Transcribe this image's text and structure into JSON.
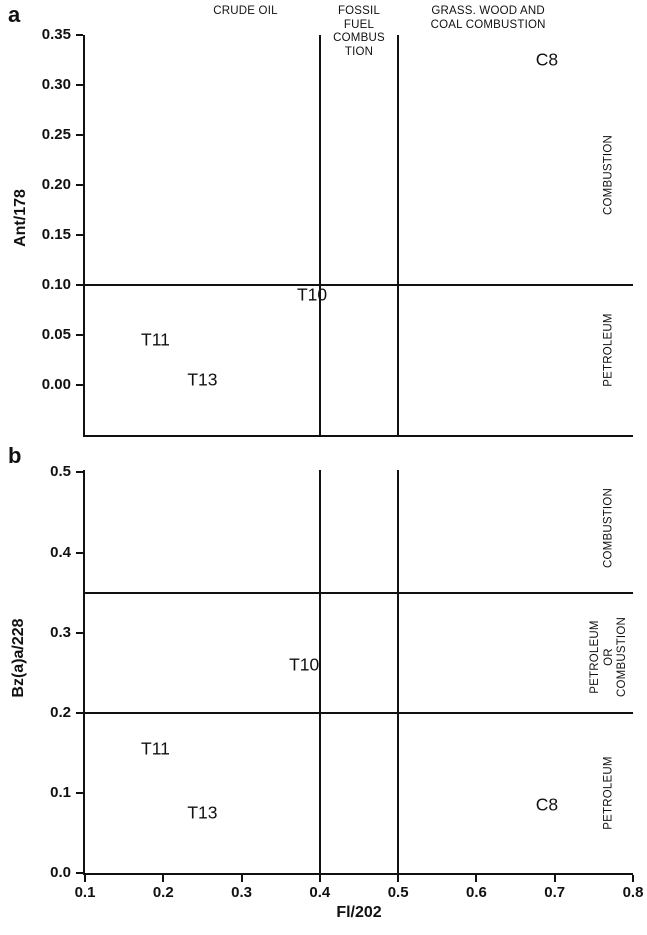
{
  "figure": {
    "xlabel": "Fl/202",
    "background": "#ffffff",
    "line_color": "#111111"
  },
  "chart_data": [
    {
      "type": "scatter",
      "panel_label": "a",
      "ylabel": "Ant/178",
      "xlabel": "Fl/202",
      "xlim": [
        0.1,
        0.8
      ],
      "ylim": [
        -0.05,
        0.35
      ],
      "grid": false,
      "legend": false,
      "yticks": [
        {
          "value": 0.35,
          "label": "0.35"
        },
        {
          "value": 0.3,
          "label": "0.30"
        },
        {
          "value": 0.25,
          "label": "0.25"
        },
        {
          "value": 0.2,
          "label": "0.20"
        },
        {
          "value": 0.15,
          "label": "0.15"
        },
        {
          "value": 0.1,
          "label": "0.10"
        },
        {
          "value": 0.05,
          "label": "0.05"
        },
        {
          "value": 0.0,
          "label": "0.00"
        }
      ],
      "xticks": [],
      "boundary_lines": {
        "horizontal": [
          0.1
        ],
        "vertical": [
          0.4,
          0.5
        ]
      },
      "points": [
        {
          "label": "C8",
          "x": 0.69,
          "y": 0.325
        },
        {
          "label": "T10",
          "x": 0.39,
          "y": 0.09
        },
        {
          "label": "T11",
          "x": 0.19,
          "y": 0.045
        },
        {
          "label": "T13",
          "x": 0.25,
          "y": 0.005
        }
      ],
      "top_annotations": [
        {
          "text": "CRUDE OIL",
          "x": 0.305
        },
        {
          "text": "FOSSIL\nFUEL\nCOMBUS\nTION",
          "x": 0.45
        },
        {
          "text": "GRASS. WOOD AND\nCOAL COMBUSTION",
          "x": 0.615
        }
      ],
      "right_annotations": [
        {
          "text": "COMBUSTION",
          "y": 0.21
        },
        {
          "text": "PETROLEUM",
          "y": 0.035
        }
      ]
    },
    {
      "type": "scatter",
      "panel_label": "b",
      "ylabel": "Bz(a)a/228",
      "xlabel": "Fl/202",
      "xlim": [
        0.1,
        0.8
      ],
      "ylim": [
        0.0,
        0.503
      ],
      "grid": false,
      "legend": false,
      "yticks": [
        {
          "value": 0.5,
          "label": "0.5"
        },
        {
          "value": 0.4,
          "label": "0.4"
        },
        {
          "value": 0.3,
          "label": "0.3"
        },
        {
          "value": 0.2,
          "label": "0.2"
        },
        {
          "value": 0.1,
          "label": "0.1"
        },
        {
          "value": 0.0,
          "label": "0.0"
        }
      ],
      "xticks": [
        {
          "value": 0.1,
          "label": "0.1"
        },
        {
          "value": 0.2,
          "label": "0.2"
        },
        {
          "value": 0.3,
          "label": "0.3"
        },
        {
          "value": 0.4,
          "label": "0.4"
        },
        {
          "value": 0.5,
          "label": "0.5"
        },
        {
          "value": 0.6,
          "label": "0.6"
        },
        {
          "value": 0.7,
          "label": "0.7"
        },
        {
          "value": 0.8,
          "label": "0.8"
        }
      ],
      "boundary_lines": {
        "horizontal": [
          0.35,
          0.2
        ],
        "vertical": [
          0.4,
          0.5
        ]
      },
      "points": [
        {
          "label": "T10",
          "x": 0.38,
          "y": 0.26
        },
        {
          "label": "T11",
          "x": 0.19,
          "y": 0.155
        },
        {
          "label": "T13",
          "x": 0.25,
          "y": 0.075
        },
        {
          "label": "C8",
          "x": 0.69,
          "y": 0.085
        }
      ],
      "top_annotations": [],
      "right_annotations": [
        {
          "text": "COMBUSTION",
          "y": 0.43
        },
        {
          "text": "PETROLEUM\nOR\nCOMBUSTION",
          "y": 0.27
        },
        {
          "text": "PETROLEUM",
          "y": 0.1
        }
      ]
    }
  ]
}
